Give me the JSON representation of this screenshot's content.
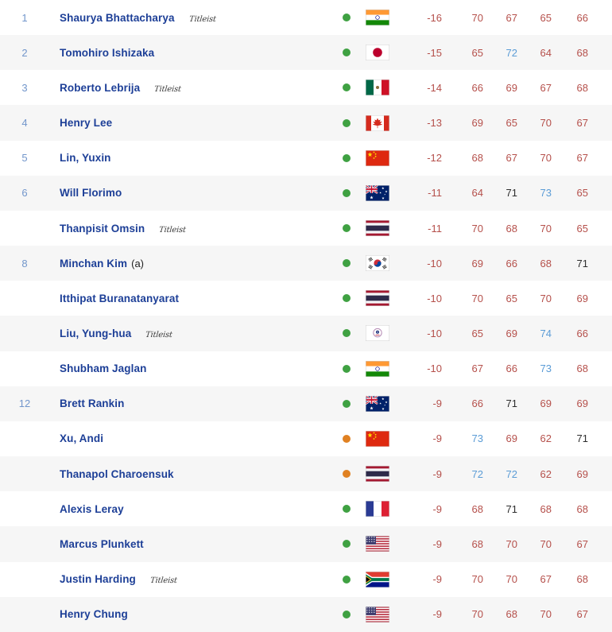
{
  "titleist_label": "Titleist",
  "colors": {
    "name_blue": "#1d3f97",
    "rank_blue": "#7296cb",
    "under_par_red": "#b5504b",
    "over_par_blue": "#5b9cd6",
    "even_par_black": "#2d2d2d",
    "green_dot": "#3fa142",
    "orange_dot": "#e08122",
    "row_alt_bg": "#f6f6f6"
  },
  "rows": [
    {
      "rank": "1",
      "name": "Shaurya Bhattacharya",
      "suffix": "",
      "titleist": true,
      "dot": "green",
      "country": "IN",
      "score": "-16",
      "score_color": "red",
      "rounds": [
        "70",
        "67",
        "65",
        "66"
      ],
      "round_colors": [
        "red",
        "red",
        "red",
        "red"
      ]
    },
    {
      "rank": "2",
      "name": "Tomohiro Ishizaka",
      "suffix": "",
      "titleist": false,
      "dot": "green",
      "country": "JP",
      "score": "-15",
      "score_color": "red",
      "rounds": [
        "65",
        "72",
        "64",
        "68"
      ],
      "round_colors": [
        "red",
        "blue",
        "red",
        "red"
      ]
    },
    {
      "rank": "3",
      "name": "Roberto Lebrija",
      "suffix": "",
      "titleist": true,
      "dot": "green",
      "country": "MX",
      "score": "-14",
      "score_color": "red",
      "rounds": [
        "66",
        "69",
        "67",
        "68"
      ],
      "round_colors": [
        "red",
        "red",
        "red",
        "red"
      ]
    },
    {
      "rank": "4",
      "name": "Henry Lee",
      "suffix": "",
      "titleist": false,
      "dot": "green",
      "country": "CA",
      "score": "-13",
      "score_color": "red",
      "rounds": [
        "69",
        "65",
        "70",
        "67"
      ],
      "round_colors": [
        "red",
        "red",
        "red",
        "red"
      ]
    },
    {
      "rank": "5",
      "name": "Lin, Yuxin",
      "suffix": "",
      "titleist": false,
      "dot": "green",
      "country": "CN",
      "score": "-12",
      "score_color": "red",
      "rounds": [
        "68",
        "67",
        "70",
        "67"
      ],
      "round_colors": [
        "red",
        "red",
        "red",
        "red"
      ]
    },
    {
      "rank": "6",
      "name": "Will Florimo",
      "suffix": "",
      "titleist": false,
      "dot": "green",
      "country": "AU",
      "score": "-11",
      "score_color": "red",
      "rounds": [
        "64",
        "71",
        "73",
        "65"
      ],
      "round_colors": [
        "red",
        "black",
        "blue",
        "red"
      ]
    },
    {
      "rank": "",
      "name": "Thanpisit Omsin",
      "suffix": "",
      "titleist": true,
      "dot": "green",
      "country": "TH",
      "score": "-11",
      "score_color": "red",
      "rounds": [
        "70",
        "68",
        "70",
        "65"
      ],
      "round_colors": [
        "red",
        "red",
        "red",
        "red"
      ]
    },
    {
      "rank": "8",
      "name": "Minchan Kim",
      "suffix": "(a)",
      "titleist": false,
      "dot": "green",
      "country": "KR",
      "score": "-10",
      "score_color": "red",
      "rounds": [
        "69",
        "66",
        "68",
        "71"
      ],
      "round_colors": [
        "red",
        "red",
        "red",
        "black"
      ]
    },
    {
      "rank": "",
      "name": "Itthipat Buranatanyarat",
      "suffix": "",
      "titleist": false,
      "dot": "green",
      "country": "TH",
      "score": "-10",
      "score_color": "red",
      "rounds": [
        "70",
        "65",
        "70",
        "69"
      ],
      "round_colors": [
        "red",
        "red",
        "red",
        "red"
      ]
    },
    {
      "rank": "",
      "name": "Liu, Yung-hua",
      "suffix": "",
      "titleist": true,
      "dot": "green",
      "country": "TPE",
      "score": "-10",
      "score_color": "red",
      "rounds": [
        "65",
        "69",
        "74",
        "66"
      ],
      "round_colors": [
        "red",
        "red",
        "blue",
        "red"
      ]
    },
    {
      "rank": "",
      "name": "Shubham Jaglan",
      "suffix": "",
      "titleist": false,
      "dot": "green",
      "country": "IN",
      "score": "-10",
      "score_color": "red",
      "rounds": [
        "67",
        "66",
        "73",
        "68"
      ],
      "round_colors": [
        "red",
        "red",
        "blue",
        "red"
      ]
    },
    {
      "rank": "12",
      "name": "Brett Rankin",
      "suffix": "",
      "titleist": false,
      "dot": "green",
      "country": "AU",
      "score": "-9",
      "score_color": "red",
      "rounds": [
        "66",
        "71",
        "69",
        "69"
      ],
      "round_colors": [
        "red",
        "black",
        "red",
        "red"
      ]
    },
    {
      "rank": "",
      "name": "Xu, Andi",
      "suffix": "",
      "titleist": false,
      "dot": "orange",
      "country": "CN",
      "score": "-9",
      "score_color": "red",
      "rounds": [
        "73",
        "69",
        "62",
        "71"
      ],
      "round_colors": [
        "blue",
        "red",
        "red",
        "black"
      ]
    },
    {
      "rank": "",
      "name": "Thanapol Charoensuk",
      "suffix": "",
      "titleist": false,
      "dot": "orange",
      "country": "TH",
      "score": "-9",
      "score_color": "red",
      "rounds": [
        "72",
        "72",
        "62",
        "69"
      ],
      "round_colors": [
        "blue",
        "blue",
        "red",
        "red"
      ]
    },
    {
      "rank": "",
      "name": "Alexis Leray",
      "suffix": "",
      "titleist": false,
      "dot": "green",
      "country": "FR",
      "score": "-9",
      "score_color": "red",
      "rounds": [
        "68",
        "71",
        "68",
        "68"
      ],
      "round_colors": [
        "red",
        "black",
        "red",
        "red"
      ]
    },
    {
      "rank": "",
      "name": "Marcus Plunkett",
      "suffix": "",
      "titleist": false,
      "dot": "green",
      "country": "US",
      "score": "-9",
      "score_color": "red",
      "rounds": [
        "68",
        "70",
        "70",
        "67"
      ],
      "round_colors": [
        "red",
        "red",
        "red",
        "red"
      ]
    },
    {
      "rank": "",
      "name": "Justin Harding",
      "suffix": "",
      "titleist": true,
      "dot": "green",
      "country": "ZA",
      "score": "-9",
      "score_color": "red",
      "rounds": [
        "70",
        "70",
        "67",
        "68"
      ],
      "round_colors": [
        "red",
        "red",
        "red",
        "red"
      ]
    },
    {
      "rank": "",
      "name": "Henry Chung",
      "suffix": "",
      "titleist": false,
      "dot": "green",
      "country": "US",
      "score": "-9",
      "score_color": "red",
      "rounds": [
        "70",
        "68",
        "70",
        "67"
      ],
      "round_colors": [
        "red",
        "red",
        "red",
        "red"
      ]
    }
  ]
}
